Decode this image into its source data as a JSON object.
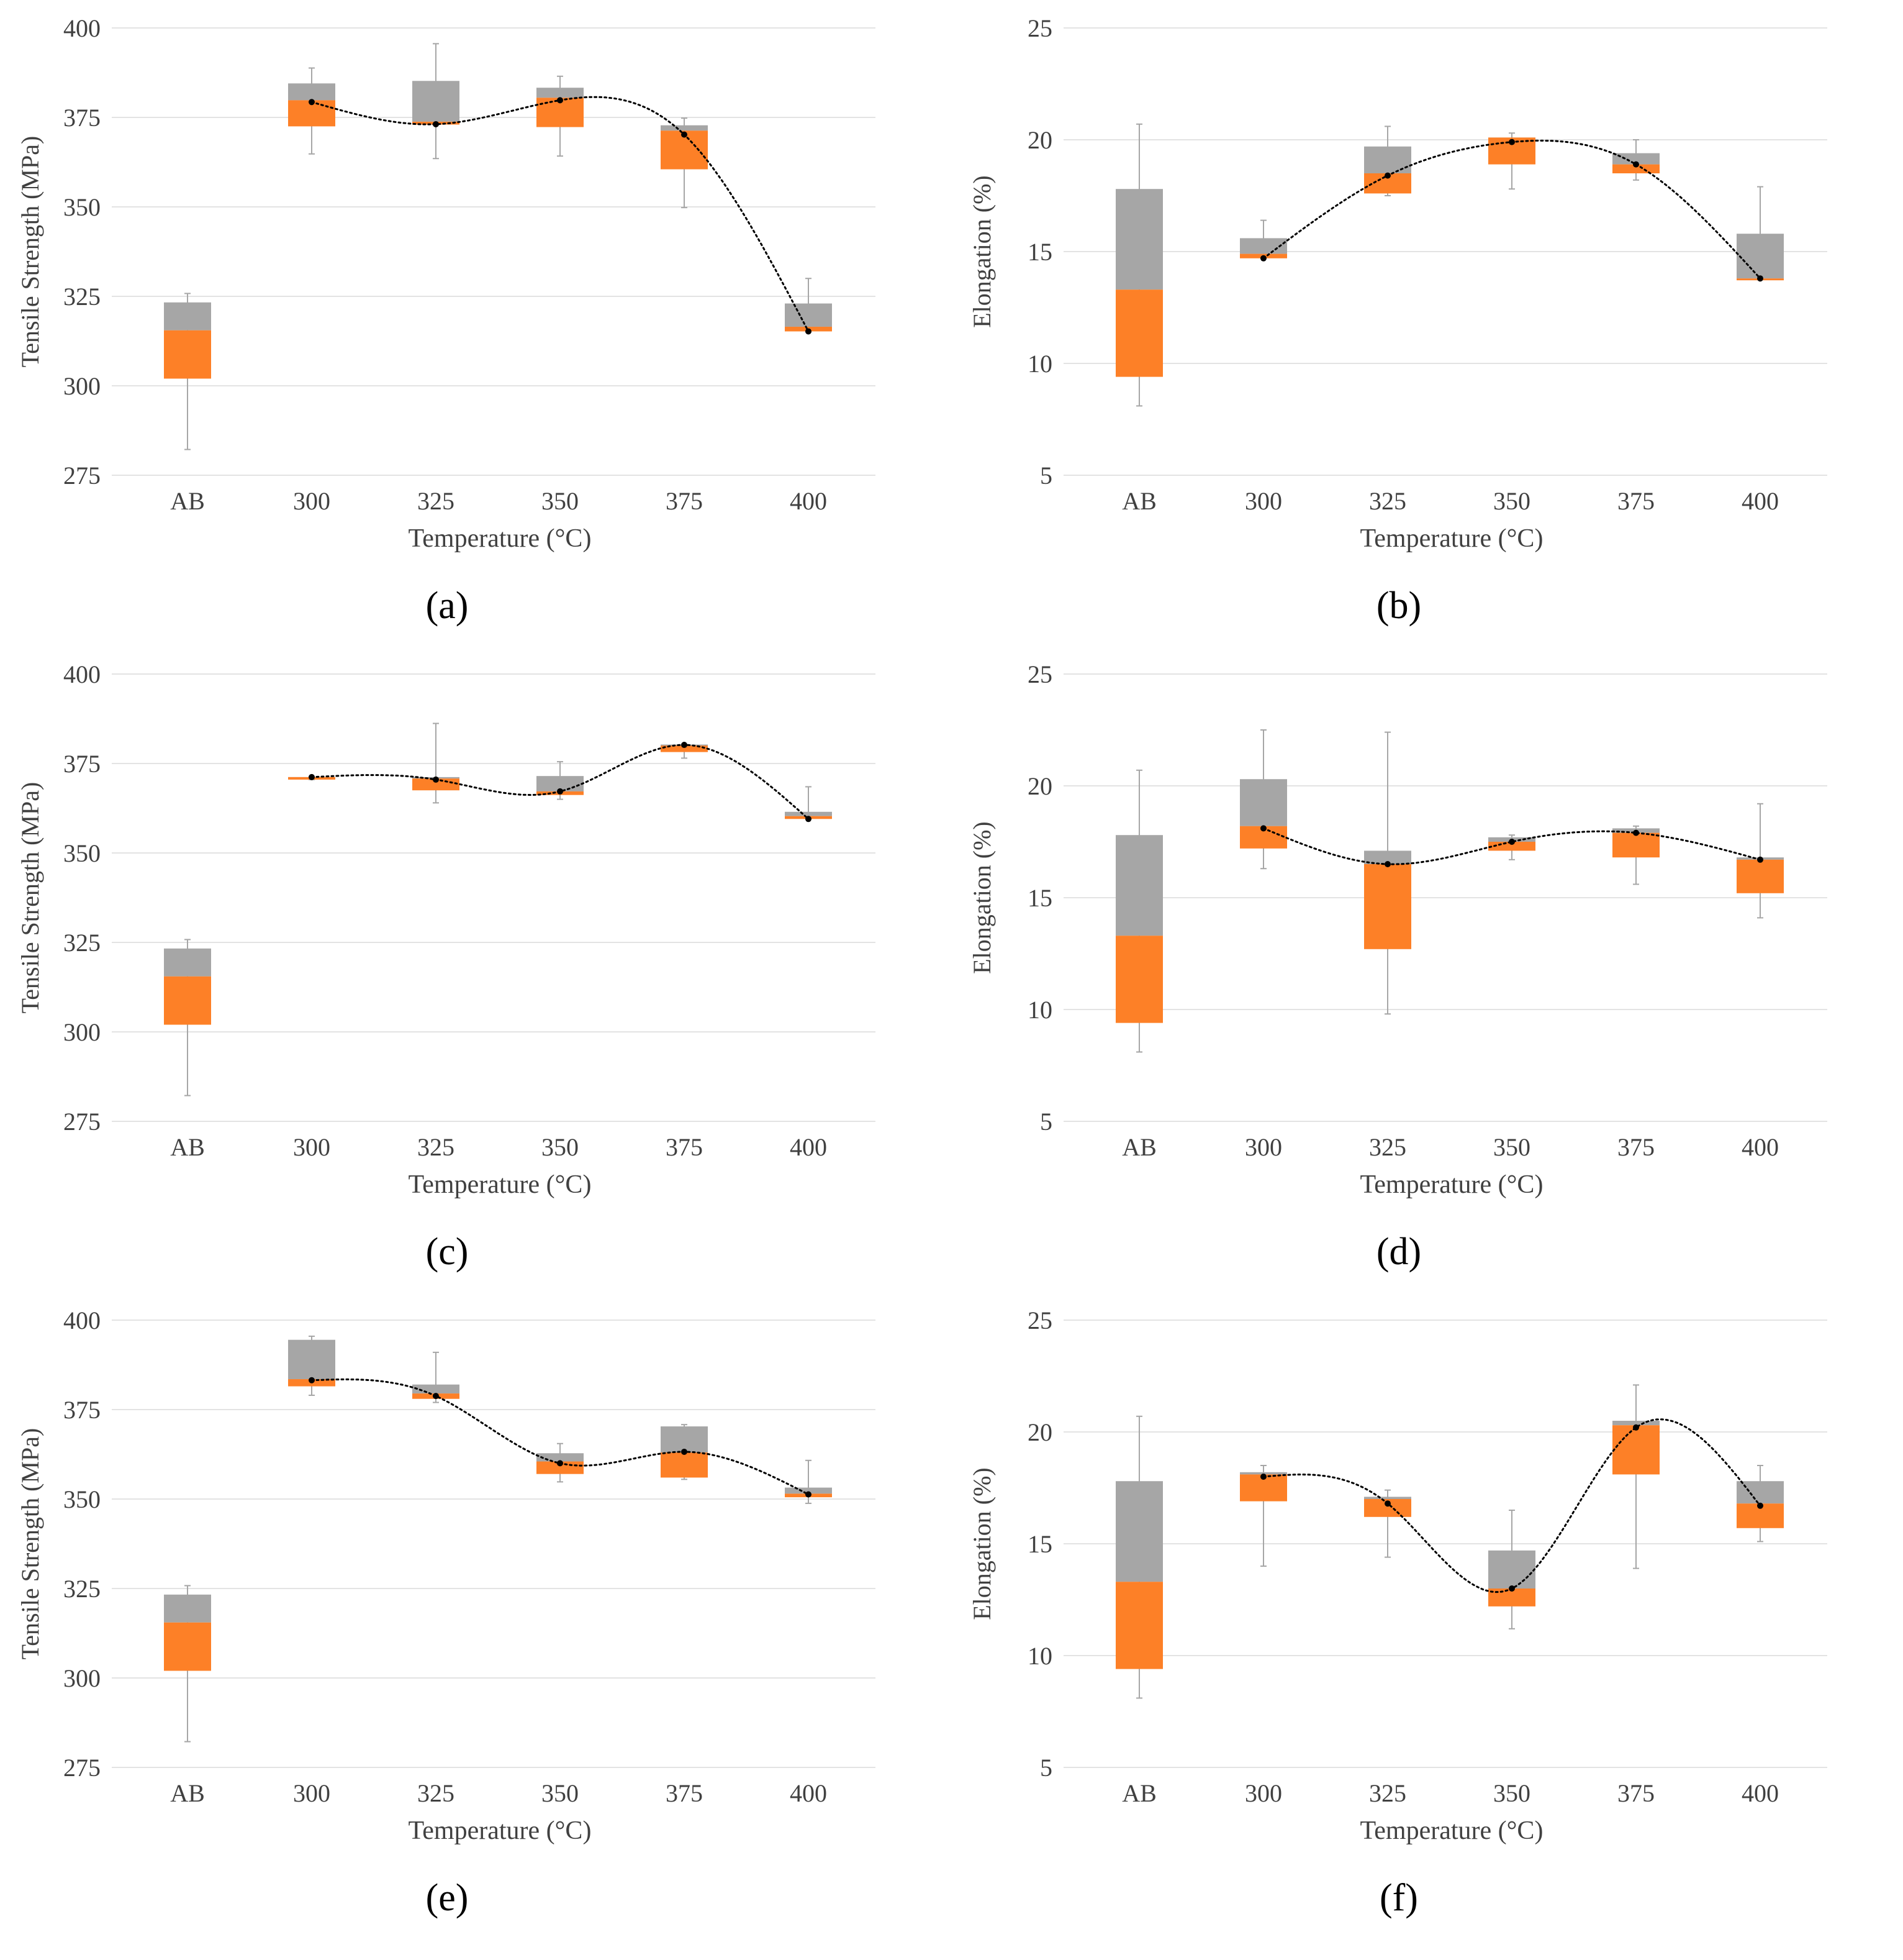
{
  "colors": {
    "gray": "#a6a6a6",
    "orange": "#fd8027",
    "grid": "#e3e3e3",
    "whisker": "#a6a6a6",
    "trend": "#000000",
    "text": "#404040"
  },
  "chart_data": [
    {
      "id": "a",
      "caption": "(a)",
      "type": "box",
      "ylabel": "Tensile Strength (MPa)",
      "xlabel": "Temperature (°C)",
      "categories": [
        "AB",
        "300",
        "325",
        "350",
        "375",
        "400"
      ],
      "ylim": [
        275,
        400
      ],
      "yticks": [
        275,
        300,
        325,
        350,
        375,
        400
      ],
      "series": [
        {
          "name": "lower box",
          "color": "orange",
          "values": [
            [
              302,
              315.5
            ],
            [
              372.5,
              379.8
            ],
            [
              373,
              373.8
            ],
            [
              372.3,
              380.5
            ],
            [
              360.5,
              371.3
            ],
            [
              315.2,
              316.5
            ]
          ]
        },
        {
          "name": "upper box",
          "color": "gray",
          "values": [
            [
              315.5,
              323.3
            ],
            [
              379.8,
              384.5
            ],
            [
              373.8,
              385.2
            ],
            [
              380.5,
              383.3
            ],
            [
              371.3,
              372.8
            ],
            [
              316.5,
              323
            ]
          ]
        },
        {
          "name": "whiskers",
          "values": [
            [
              282.2,
              325.8
            ],
            [
              364.8,
              388.8
            ],
            [
              363.5,
              395.6
            ],
            [
              364.2,
              386.5
            ],
            [
              349.8,
              374.8
            ],
            [
              315.2,
              330
            ]
          ]
        },
        {
          "name": "mean",
          "values": [
            null,
            379.3,
            373.1,
            379.8,
            370.2,
            315.2
          ]
        }
      ]
    },
    {
      "id": "b",
      "caption": "(b)",
      "type": "box",
      "ylabel": "Elongation (%)",
      "xlabel": "Temperature (°C)",
      "categories": [
        "AB",
        "300",
        "325",
        "350",
        "375",
        "400"
      ],
      "ylim": [
        5,
        25
      ],
      "yticks": [
        5,
        10,
        15,
        20,
        25
      ],
      "series": [
        {
          "name": "lower box",
          "color": "orange",
          "values": [
            [
              9.4,
              13.3
            ],
            [
              14.7,
              14.9
            ],
            [
              17.6,
              18.5
            ],
            [
              18.9,
              20.1
            ],
            [
              18.5,
              18.9
            ],
            [
              13.8,
              13.8
            ]
          ]
        },
        {
          "name": "upper box",
          "color": "gray",
          "values": [
            [
              13.3,
              17.8
            ],
            [
              14.9,
              15.6
            ],
            [
              18.5,
              19.7
            ],
            [
              20.1,
              20.1
            ],
            [
              18.9,
              19.4
            ],
            [
              13.8,
              15.8
            ]
          ]
        },
        {
          "name": "whiskers",
          "values": [
            [
              8.1,
              20.7
            ],
            [
              14.7,
              16.4
            ],
            [
              17.5,
              20.6
            ],
            [
              17.8,
              20.3
            ],
            [
              18.2,
              20
            ],
            [
              13.8,
              17.9
            ]
          ]
        },
        {
          "name": "mean",
          "values": [
            null,
            14.7,
            18.4,
            19.9,
            18.9,
            13.8
          ]
        }
      ]
    },
    {
      "id": "c",
      "caption": "(c)",
      "type": "box",
      "ylabel": "Tensile Strength (MPa)",
      "xlabel": "Temperature (°C)",
      "categories": [
        "AB",
        "300",
        "325",
        "350",
        "375",
        "400"
      ],
      "ylim": [
        275,
        400
      ],
      "yticks": [
        275,
        300,
        325,
        350,
        375,
        400
      ],
      "series": [
        {
          "name": "lower box",
          "color": "orange",
          "values": [
            [
              302,
              315.5
            ],
            [
              370.5,
              371.2
            ],
            [
              367.5,
              370.8
            ],
            [
              366.2,
              367.2
            ],
            [
              378.2,
              380
            ],
            [
              359.5,
              360.3
            ]
          ]
        },
        {
          "name": "upper box",
          "color": "gray",
          "values": [
            [
              315.5,
              323.3
            ],
            [
              371.2,
              371.2
            ],
            [
              370.8,
              371.2
            ],
            [
              367.2,
              371.5
            ],
            [
              380,
              380.3
            ],
            [
              360.3,
              361.5
            ]
          ]
        },
        {
          "name": "whiskers",
          "values": [
            [
              282.2,
              325.8
            ],
            [
              370.5,
              371.2
            ],
            [
              364,
              386.2
            ],
            [
              365,
              375.5
            ],
            [
              376.5,
              380.3
            ],
            [
              359.5,
              368.5
            ]
          ]
        },
        {
          "name": "mean",
          "values": [
            null,
            371.2,
            370.5,
            367.2,
            380.2,
            359.5
          ]
        }
      ]
    },
    {
      "id": "d",
      "caption": "(d)",
      "type": "box",
      "ylabel": "Elongation (%)",
      "xlabel": "Temperature (°C)",
      "categories": [
        "AB",
        "300",
        "325",
        "350",
        "375",
        "400"
      ],
      "ylim": [
        5,
        25
      ],
      "yticks": [
        5,
        10,
        15,
        20,
        25
      ],
      "series": [
        {
          "name": "lower box",
          "color": "orange",
          "values": [
            [
              9.4,
              13.3
            ],
            [
              17.2,
              18.2
            ],
            [
              12.7,
              16.5
            ],
            [
              17.1,
              17.5
            ],
            [
              16.8,
              17.9
            ],
            [
              15.2,
              16.7
            ]
          ]
        },
        {
          "name": "upper box",
          "color": "gray",
          "values": [
            [
              13.3,
              17.8
            ],
            [
              18.2,
              20.3
            ],
            [
              16.5,
              17.1
            ],
            [
              17.5,
              17.7
            ],
            [
              17.9,
              18.1
            ],
            [
              16.7,
              16.8
            ]
          ]
        },
        {
          "name": "whiskers",
          "values": [
            [
              8.1,
              20.7
            ],
            [
              16.3,
              22.5
            ],
            [
              9.8,
              22.4
            ],
            [
              16.7,
              17.8
            ],
            [
              15.6,
              18.2
            ],
            [
              14.1,
              19.2
            ]
          ]
        },
        {
          "name": "mean",
          "values": [
            null,
            18.1,
            16.5,
            17.5,
            17.9,
            16.7
          ]
        }
      ]
    },
    {
      "id": "e",
      "caption": "(e)",
      "type": "box",
      "ylabel": "Tensile Strength (MPa)",
      "xlabel": "Temperature (°C)",
      "categories": [
        "AB",
        "300",
        "325",
        "350",
        "375",
        "400"
      ],
      "ylim": [
        275,
        400
      ],
      "yticks": [
        275,
        300,
        325,
        350,
        375,
        400
      ],
      "series": [
        {
          "name": "lower box",
          "color": "orange",
          "values": [
            [
              302,
              315.5
            ],
            [
              381.5,
              383.5
            ],
            [
              378,
              379.5
            ],
            [
              357,
              360.5
            ],
            [
              356,
              363
            ],
            [
              350.5,
              351.5
            ]
          ]
        },
        {
          "name": "upper box",
          "color": "gray",
          "values": [
            [
              315.5,
              323.3
            ],
            [
              383.5,
              394.5
            ],
            [
              379.5,
              382
            ],
            [
              360.5,
              362.8
            ],
            [
              363,
              370.3
            ],
            [
              351.5,
              353.2
            ]
          ]
        },
        {
          "name": "whiskers",
          "values": [
            [
              282.2,
              325.8
            ],
            [
              379,
              395.5
            ],
            [
              377,
              391
            ],
            [
              354.8,
              365.5
            ],
            [
              355.5,
              370.8
            ],
            [
              348.8,
              360.8
            ]
          ]
        },
        {
          "name": "mean",
          "values": [
            null,
            383.2,
            378.8,
            360,
            363.2,
            351.3
          ]
        }
      ]
    },
    {
      "id": "f",
      "caption": "(f)",
      "type": "box",
      "ylabel": "Elongation (%)",
      "xlabel": "Temperature (°C)",
      "categories": [
        "AB",
        "300",
        "325",
        "350",
        "375",
        "400"
      ],
      "ylim": [
        5,
        25
      ],
      "yticks": [
        5,
        10,
        15,
        20,
        25
      ],
      "series": [
        {
          "name": "lower box",
          "color": "orange",
          "values": [
            [
              9.4,
              13.3
            ],
            [
              16.9,
              18.1
            ],
            [
              16.2,
              17
            ],
            [
              12.2,
              13
            ],
            [
              18.1,
              20.3
            ],
            [
              15.7,
              16.8
            ]
          ]
        },
        {
          "name": "upper box",
          "color": "gray",
          "values": [
            [
              13.3,
              17.8
            ],
            [
              18.1,
              18.2
            ],
            [
              17,
              17.1
            ],
            [
              13,
              14.7
            ],
            [
              20.3,
              20.5
            ],
            [
              16.8,
              17.8
            ]
          ]
        },
        {
          "name": "whiskers",
          "values": [
            [
              8.1,
              20.7
            ],
            [
              14,
              18.5
            ],
            [
              14.4,
              17.4
            ],
            [
              11.2,
              16.5
            ],
            [
              13.9,
              22.1
            ],
            [
              15.1,
              18.5
            ]
          ]
        },
        {
          "name": "mean",
          "values": [
            null,
            18,
            16.8,
            13,
            20.2,
            16.7
          ]
        }
      ]
    }
  ]
}
